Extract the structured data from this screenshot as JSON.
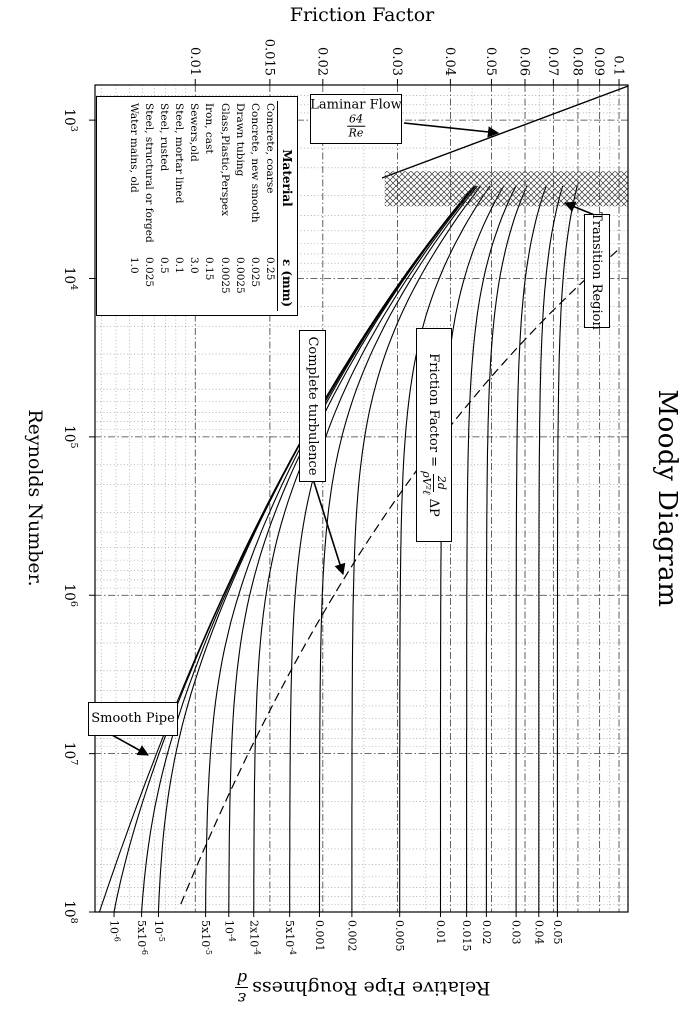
{
  "page": {
    "background": "#ffffff",
    "ink_color": "#000000"
  },
  "chart_data": {
    "type": "line",
    "title": "Moody Diagram",
    "x_axis": {
      "label": "Reynolds Number.",
      "scale": "log",
      "min": 600,
      "max": 100000000,
      "ticks": [
        {
          "label": "10^3",
          "value": 1000
        },
        {
          "label": "10^4",
          "value": 10000
        },
        {
          "label": "10^5",
          "value": 100000
        },
        {
          "label": "10^6",
          "value": 1000000
        },
        {
          "label": "10^7",
          "value": 10000000
        },
        {
          "label": "10^8",
          "value": 100000000
        }
      ]
    },
    "y_axis": {
      "label": "Friction Factor",
      "scale": "log",
      "min": 0.0058,
      "max": 0.105,
      "ticks": [
        {
          "label": "0.01",
          "value": 0.01
        },
        {
          "label": "0.015",
          "value": 0.015
        },
        {
          "label": "0.02",
          "value": 0.02
        },
        {
          "label": "0.03",
          "value": 0.03
        },
        {
          "label": "0.04",
          "value": 0.04
        },
        {
          "label": "0.05",
          "value": 0.05
        },
        {
          "label": "0.06",
          "value": 0.06
        },
        {
          "label": "0.07",
          "value": 0.07
        },
        {
          "label": "0.08",
          "value": 0.08
        },
        {
          "label": "0.09",
          "value": 0.09
        },
        {
          "label": "0.1",
          "value": 0.1
        }
      ]
    },
    "right_axis": {
      "label": "Relative Pipe Roughness",
      "fraction_numerator": "ε",
      "fraction_denominator": "d",
      "labels": [
        {
          "label": "0.05",
          "value": 0.05
        },
        {
          "label": "0.04",
          "value": 0.04
        },
        {
          "label": "0.03",
          "value": 0.03
        },
        {
          "label": "0.02",
          "value": 0.02
        },
        {
          "label": "0.015",
          "value": 0.015
        },
        {
          "label": "0.01",
          "value": 0.01
        },
        {
          "label": "0.005",
          "value": 0.005
        },
        {
          "label": "0.002",
          "value": 0.002
        },
        {
          "label": "0.001",
          "value": 0.001
        },
        {
          "label": "5x10^-4",
          "value": 0.0005
        },
        {
          "label": "2x10^-4",
          "value": 0.0002
        },
        {
          "label": "10^-4",
          "value": 0.0001
        },
        {
          "label": "5x10^-5",
          "value": 5e-05
        },
        {
          "label": "10^-5",
          "value": 1e-05
        },
        {
          "label": "5x10^-6",
          "value": 5e-06
        },
        {
          "label": "10^-6",
          "value": 1e-06
        }
      ]
    },
    "series": {
      "model": "Colebrook 1/sqrt(f) = -2 log10( (eps/d)/3.7 + 2.51/(Re sqrt(f)) )",
      "turbulent_roughness_values": [
        0.05,
        0.04,
        0.03,
        0.02,
        0.015,
        0.01,
        0.005,
        0.002,
        0.001,
        0.0005,
        0.0002,
        0.0001,
        5e-05,
        1e-05,
        5e-06,
        1e-06,
        0
      ],
      "turbulent_re_range": [
        2600,
        100000000
      ],
      "laminar": {
        "equation": "f = 64/Re",
        "re_range": [
          610,
          2320
        ]
      },
      "complete_turbulence_boundary": {
        "relation": "Re = 200/((eps/d)*sqrt(f))",
        "rr_range": [
          0.11,
          2e-05
        ],
        "style": "dashed"
      },
      "transition_band": {
        "re_range": [
          2100,
          3500
        ],
        "f_range": [
          0.028,
          0.105
        ],
        "style": "crosshatch"
      }
    },
    "grid": {
      "minor": true,
      "major": true
    }
  },
  "legend": {
    "col1": "Material",
    "col2": "ε (mm)",
    "rows": [
      {
        "material": "Concrete, coarse",
        "epsilon": "0.25"
      },
      {
        "material": "Concrete, new smooth",
        "epsilon": "0.025"
      },
      {
        "material": "Drawn tubing",
        "epsilon": "0.0025"
      },
      {
        "material": "Glass,Plastic,Perspex",
        "epsilon": "0.0025"
      },
      {
        "material": "Iron, cast",
        "epsilon": "0.15"
      },
      {
        "material": "Sewers,old",
        "epsilon": "3.0"
      },
      {
        "material": "Steel, mortar lined",
        "epsilon": "0.1"
      },
      {
        "material": "Steel, rusted",
        "epsilon": "0.5"
      },
      {
        "material": "Steel, structural or forged",
        "epsilon": "0.025"
      },
      {
        "material": "Water mains, old",
        "epsilon": "1.0"
      }
    ]
  },
  "annotations": {
    "laminar": {
      "label": "Laminar Flow",
      "numerator": "64",
      "denominator": "Re"
    },
    "transition": {
      "label": "Transition Region"
    },
    "complete_turbulence": {
      "label": "Complete turbulence"
    },
    "friction_formula": {
      "prefix": "Friction Factor = ",
      "numerator": "2d",
      "denominator": "ρV²ℓ",
      "suffix": "ΔP"
    },
    "smooth": {
      "label": "Smooth Pipe"
    }
  }
}
